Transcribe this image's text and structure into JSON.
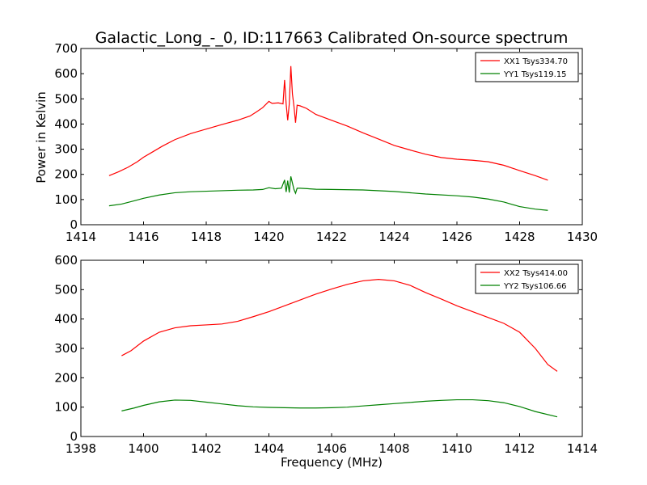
{
  "figure": {
    "title": "Galactic_Long_-_0, ID:117663 Calibrated On-source spectrum",
    "ylabel": "Power in Kelvin",
    "xlabel": "Frequency (MHz)"
  },
  "chart_data": [
    {
      "type": "line",
      "xlim": [
        1414,
        1430
      ],
      "ylim": [
        0,
        700
      ],
      "x_ticks": [
        1414,
        1416,
        1418,
        1420,
        1422,
        1424,
        1426,
        1428,
        1430
      ],
      "y_ticks": [
        0,
        100,
        200,
        300,
        400,
        500,
        600,
        700
      ],
      "legend_position": "top-right",
      "grid": false,
      "series": [
        {
          "name": "XX1 Tsys334.70",
          "color": "#ff0000",
          "points": [
            [
              1414.9,
              195
            ],
            [
              1415.2,
              210
            ],
            [
              1415.5,
              228
            ],
            [
              1415.8,
              250
            ],
            [
              1416.0,
              268
            ],
            [
              1416.3,
              290
            ],
            [
              1416.6,
              312
            ],
            [
              1417.0,
              338
            ],
            [
              1417.5,
              362
            ],
            [
              1418.0,
              380
            ],
            [
              1418.5,
              398
            ],
            [
              1419.0,
              415
            ],
            [
              1419.4,
              432
            ],
            [
              1419.6,
              448
            ],
            [
              1419.8,
              465
            ],
            [
              1420.0,
              490
            ],
            [
              1420.1,
              482
            ],
            [
              1420.3,
              484
            ],
            [
              1420.45,
              480
            ],
            [
              1420.5,
              575
            ],
            [
              1420.55,
              480
            ],
            [
              1420.6,
              415
            ],
            [
              1420.65,
              480
            ],
            [
              1420.7,
              630
            ],
            [
              1420.75,
              520
            ],
            [
              1420.8,
              470
            ],
            [
              1420.85,
              405
            ],
            [
              1420.9,
              475
            ],
            [
              1421.0,
              472
            ],
            [
              1421.2,
              462
            ],
            [
              1421.5,
              438
            ],
            [
              1422.0,
              415
            ],
            [
              1422.5,
              392
            ],
            [
              1423.0,
              365
            ],
            [
              1423.5,
              340
            ],
            [
              1424.0,
              315
            ],
            [
              1424.5,
              297
            ],
            [
              1425.0,
              280
            ],
            [
              1425.5,
              267
            ],
            [
              1426.0,
              260
            ],
            [
              1426.5,
              256
            ],
            [
              1427.0,
              250
            ],
            [
              1427.5,
              236
            ],
            [
              1428.0,
              215
            ],
            [
              1428.5,
              195
            ],
            [
              1428.9,
              177
            ]
          ]
        },
        {
          "name": "YY1 Tsys119.15",
          "color": "#008000",
          "points": [
            [
              1414.9,
              75
            ],
            [
              1415.3,
              82
            ],
            [
              1415.7,
              95
            ],
            [
              1416.0,
              105
            ],
            [
              1416.5,
              118
            ],
            [
              1417.0,
              127
            ],
            [
              1417.5,
              131
            ],
            [
              1418.0,
              133
            ],
            [
              1418.5,
              135
            ],
            [
              1419.0,
              137
            ],
            [
              1419.5,
              138
            ],
            [
              1419.8,
              140
            ],
            [
              1420.0,
              147
            ],
            [
              1420.2,
              143
            ],
            [
              1420.4,
              145
            ],
            [
              1420.5,
              178
            ],
            [
              1420.55,
              130
            ],
            [
              1420.6,
              175
            ],
            [
              1420.65,
              128
            ],
            [
              1420.7,
              192
            ],
            [
              1420.8,
              140
            ],
            [
              1420.85,
              125
            ],
            [
              1420.9,
              145
            ],
            [
              1421.0,
              145
            ],
            [
              1421.5,
              141
            ],
            [
              1422.0,
              140
            ],
            [
              1423.0,
              138
            ],
            [
              1424.0,
              132
            ],
            [
              1425.0,
              122
            ],
            [
              1426.0,
              115
            ],
            [
              1426.5,
              110
            ],
            [
              1427.0,
              102
            ],
            [
              1427.5,
              90
            ],
            [
              1428.0,
              72
            ],
            [
              1428.5,
              62
            ],
            [
              1428.9,
              57
            ]
          ]
        }
      ]
    },
    {
      "type": "line",
      "xlim": [
        1398,
        1414
      ],
      "ylim": [
        0,
        600
      ],
      "x_ticks": [
        1398,
        1400,
        1402,
        1404,
        1406,
        1408,
        1410,
        1412,
        1414
      ],
      "y_ticks": [
        0,
        100,
        200,
        300,
        400,
        500,
        600
      ],
      "legend_position": "top-right",
      "grid": false,
      "series": [
        {
          "name": "XX2 Tsys414.00",
          "color": "#ff0000",
          "points": [
            [
              1399.3,
              275
            ],
            [
              1399.6,
              292
            ],
            [
              1400.0,
              325
            ],
            [
              1400.5,
              355
            ],
            [
              1401.0,
              370
            ],
            [
              1401.5,
              377
            ],
            [
              1402.0,
              380
            ],
            [
              1402.5,
              383
            ],
            [
              1403.0,
              392
            ],
            [
              1403.5,
              408
            ],
            [
              1404.0,
              425
            ],
            [
              1404.5,
              445
            ],
            [
              1405.0,
              465
            ],
            [
              1405.5,
              485
            ],
            [
              1406.0,
              502
            ],
            [
              1406.5,
              518
            ],
            [
              1407.0,
              530
            ],
            [
              1407.5,
              535
            ],
            [
              1408.0,
              530
            ],
            [
              1408.5,
              515
            ],
            [
              1409.0,
              490
            ],
            [
              1409.5,
              468
            ],
            [
              1410.0,
              445
            ],
            [
              1410.5,
              425
            ],
            [
              1411.0,
              405
            ],
            [
              1411.5,
              385
            ],
            [
              1412.0,
              355
            ],
            [
              1412.5,
              300
            ],
            [
              1412.9,
              245
            ],
            [
              1413.2,
              222
            ]
          ]
        },
        {
          "name": "YY2 Tsys106.66",
          "color": "#008000",
          "points": [
            [
              1399.3,
              87
            ],
            [
              1399.7,
              97
            ],
            [
              1400.0,
              106
            ],
            [
              1400.5,
              118
            ],
            [
              1401.0,
              124
            ],
            [
              1401.5,
              123
            ],
            [
              1402.0,
              117
            ],
            [
              1402.5,
              111
            ],
            [
              1403.0,
              105
            ],
            [
              1403.5,
              101
            ],
            [
              1404.0,
              99
            ],
            [
              1404.5,
              98
            ],
            [
              1405.0,
              97
            ],
            [
              1405.5,
              97
            ],
            [
              1406.0,
              98
            ],
            [
              1406.5,
              100
            ],
            [
              1407.0,
              104
            ],
            [
              1407.5,
              108
            ],
            [
              1408.0,
              112
            ],
            [
              1408.5,
              116
            ],
            [
              1409.0,
              120
            ],
            [
              1409.5,
              123
            ],
            [
              1410.0,
              125
            ],
            [
              1410.5,
              125
            ],
            [
              1411.0,
              122
            ],
            [
              1411.5,
              115
            ],
            [
              1412.0,
              102
            ],
            [
              1412.5,
              85
            ],
            [
              1413.2,
              67
            ]
          ]
        }
      ]
    }
  ]
}
